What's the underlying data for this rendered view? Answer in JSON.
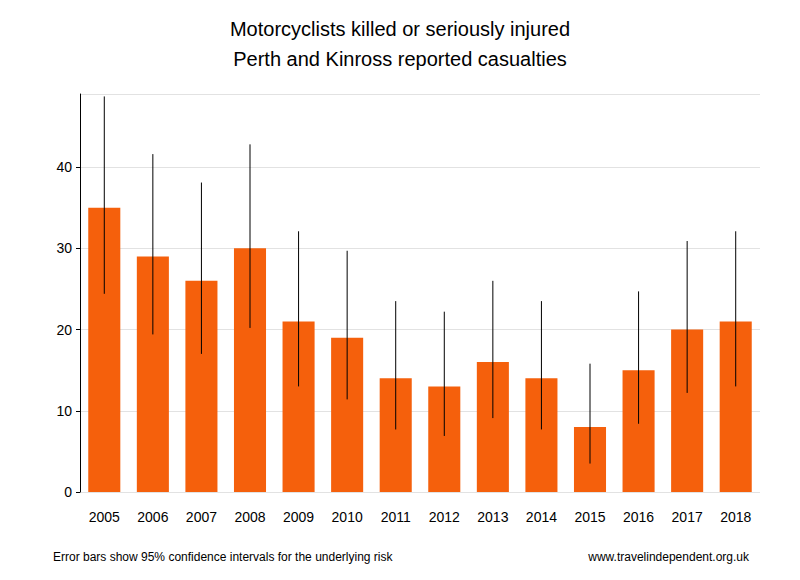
{
  "chart_data": {
    "type": "bar",
    "title": "Motorcyclists killed or seriously injured",
    "subtitle": "Perth and Kinross reported casualties",
    "footnote": "Error bars show 95% confidence intervals for the underlying risk",
    "source": "www.travelindependent.org.uk",
    "categories": [
      "2005",
      "2006",
      "2007",
      "2008",
      "2009",
      "2010",
      "2011",
      "2012",
      "2013",
      "2014",
      "2015",
      "2016",
      "2017",
      "2018"
    ],
    "values": [
      35,
      29,
      26,
      30,
      21,
      19,
      14,
      13,
      16,
      14,
      8,
      15,
      20,
      21
    ],
    "error_low": [
      24.4,
      19.4,
      17.0,
      20.2,
      13.0,
      11.4,
      7.7,
      6.9,
      9.1,
      7.7,
      3.5,
      8.4,
      12.2,
      13.0
    ],
    "error_high": [
      48.7,
      41.6,
      38.1,
      42.8,
      32.1,
      29.7,
      23.5,
      22.2,
      26.0,
      23.5,
      15.8,
      24.7,
      30.9,
      32.1
    ],
    "color": "#f5600c",
    "ylim": [
      0,
      49
    ],
    "yticks": [
      0,
      10,
      20,
      30,
      40
    ],
    "grid": true
  }
}
